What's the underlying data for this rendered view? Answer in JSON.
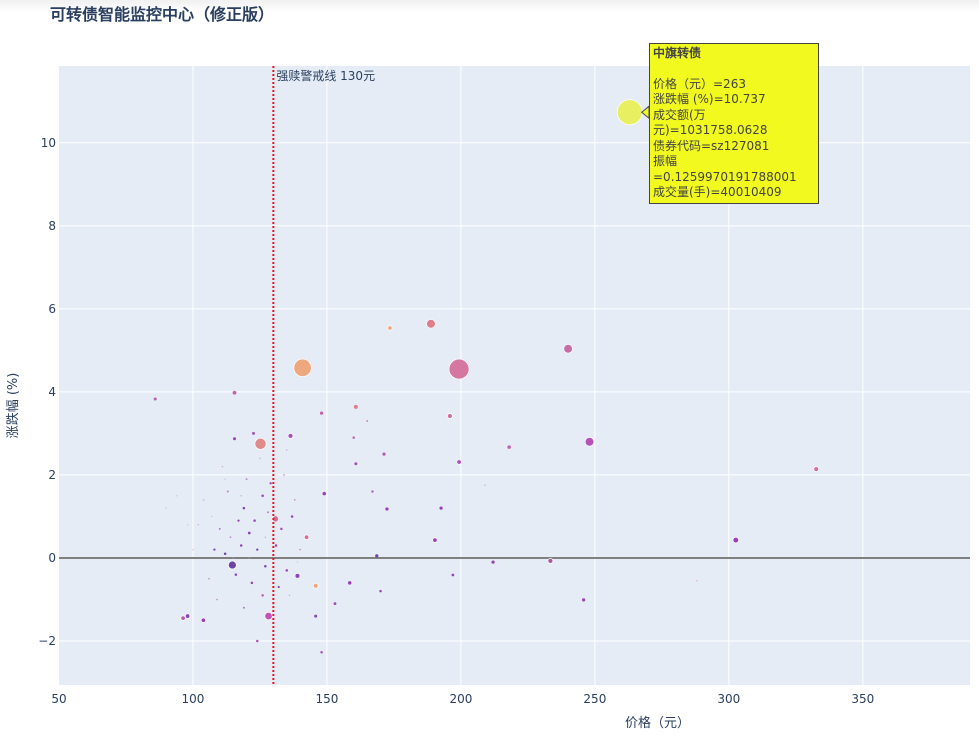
{
  "title": "可转债智能监控中心（修正版）",
  "chart_data": {
    "type": "scatter",
    "title": "可转债智能监控中心（修正版）",
    "xlabel": "价格（元）",
    "ylabel": "涨跌幅 (%)",
    "xlim": [
      50,
      390
    ],
    "ylim": [
      -3.06,
      11.85
    ],
    "xticks": [
      50,
      100,
      150,
      200,
      250,
      300,
      350
    ],
    "yticks": [
      -2,
      0,
      2,
      4,
      6,
      8,
      10
    ],
    "grid": true,
    "zero_line": 0,
    "vline": {
      "x": 130,
      "label": "强赎警戒线 130元",
      "color": "#e8141c"
    },
    "point_fields": [
      "price",
      "change_pct",
      "relative_size",
      "color"
    ],
    "points": [
      [
        263,
        10.737,
        10,
        "#e8f050"
      ],
      [
        140.9,
        4.58,
        7,
        "#f0a070"
      ],
      [
        199.3,
        4.55,
        8,
        "#d36a95"
      ],
      [
        188.8,
        5.64,
        3.5,
        "#e07080"
      ],
      [
        173.5,
        5.54,
        1.8,
        "#f0a070"
      ],
      [
        240,
        5.04,
        3.5,
        "#c060a0"
      ],
      [
        248,
        2.8,
        3.5,
        "#b040b0"
      ],
      [
        125.2,
        2.75,
        4.5,
        "#e08080"
      ],
      [
        332.6,
        2.14,
        2,
        "#d06090"
      ],
      [
        302.6,
        0.43,
        2.3,
        "#9030b0"
      ],
      [
        85.9,
        3.83,
        1.2,
        "#b050a8"
      ],
      [
        115.5,
        3.98,
        1.5,
        "#c050a0"
      ],
      [
        136.4,
        2.94,
        2,
        "#a040b0"
      ],
      [
        148,
        3.49,
        1.3,
        "#c050a0"
      ],
      [
        160.8,
        3.64,
        1.6,
        "#e07080"
      ],
      [
        195.9,
        3.42,
        2,
        "#d06090"
      ],
      [
        218,
        2.67,
        1.4,
        "#c050a0"
      ],
      [
        199.3,
        2.31,
        1.8,
        "#a040b0"
      ],
      [
        171.3,
        2.5,
        1.3,
        "#b050a8"
      ],
      [
        190.3,
        0.43,
        1.8,
        "#9030b0"
      ],
      [
        233.4,
        -0.07,
        2,
        "#a04898"
      ],
      [
        212,
        -0.1,
        1.3,
        "#9030b0"
      ],
      [
        245.8,
        -1.01,
        1.3,
        "#9030b0"
      ],
      [
        128.2,
        -1.4,
        3,
        "#c040b0"
      ],
      [
        114.7,
        -0.17,
        3.2,
        "#6030a0"
      ],
      [
        142.4,
        0.5,
        1.8,
        "#d06090"
      ],
      [
        130.8,
        0.94,
        2.5,
        "#d06090"
      ],
      [
        145.8,
        -0.67,
        2,
        "#f0a070"
      ],
      [
        158.5,
        -0.6,
        1.4,
        "#9030b0"
      ],
      [
        197,
        -0.41,
        1.1,
        "#9030b0"
      ],
      [
        168.6,
        0.05,
        1.3,
        "#6030a0"
      ],
      [
        139,
        -0.43,
        1.6,
        "#8030b0"
      ],
      [
        103.9,
        -1.5,
        1.8,
        "#9030b0"
      ],
      [
        98,
        -1.4,
        1.8,
        "#8030b0"
      ],
      [
        96.3,
        -1.45,
        1.8,
        "#b050a8"
      ],
      [
        149,
        1.55,
        1.4,
        "#9030b0"
      ],
      [
        172.4,
        1.18,
        1.3,
        "#9030b0"
      ],
      [
        192.6,
        1.2,
        1.3,
        "#9030b0"
      ],
      [
        122.6,
        3.0,
        1.2,
        "#a040b0"
      ],
      [
        160.8,
        2.27,
        1.2,
        "#a040b0"
      ],
      [
        115.5,
        2.87,
        1.2,
        "#9030b0"
      ],
      [
        148,
        -2.27,
        1,
        "#a040b0"
      ],
      [
        124,
        -2.0,
        1,
        "#a040b0"
      ],
      [
        165,
        3.3,
        0.8,
        "#c050a0"
      ],
      [
        209,
        1.75,
        0.7,
        "#c0a0c0"
      ],
      [
        288,
        -0.55,
        0.7,
        "#e0a0b0"
      ],
      [
        145.8,
        -1.4,
        1.2,
        "#8030b0"
      ],
      [
        167,
        1.6,
        0.9,
        "#a040b0"
      ],
      [
        160,
        2.9,
        1,
        "#c050a0"
      ],
      [
        170,
        -0.8,
        1,
        "#9030b0"
      ],
      [
        153,
        -1.1,
        1.1,
        "#9030b0"
      ],
      [
        112,
        0.1,
        1,
        "#6030a0"
      ],
      [
        118,
        0.3,
        1,
        "#8030b0"
      ],
      [
        121,
        0.6,
        1.1,
        "#8030b0"
      ],
      [
        123,
        0.9,
        1,
        "#9030b0"
      ],
      [
        119,
        1.2,
        1,
        "#7030a8"
      ],
      [
        126,
        1.5,
        1,
        "#9030b0"
      ],
      [
        110,
        0.7,
        0.8,
        "#9030b0"
      ],
      [
        108,
        0.2,
        0.9,
        "#8030b0"
      ],
      [
        116,
        -0.4,
        1,
        "#8030b0"
      ],
      [
        127,
        -0.2,
        1,
        "#7030a8"
      ],
      [
        131,
        0.3,
        1,
        "#9030b0"
      ],
      [
        133,
        0.7,
        1,
        "#a040b0"
      ],
      [
        129,
        1.8,
        0.9,
        "#9030b0"
      ],
      [
        113,
        1.6,
        0.8,
        "#a040b0"
      ],
      [
        122,
        -0.6,
        1,
        "#9030b0"
      ],
      [
        126,
        -0.9,
        1,
        "#b050a8"
      ],
      [
        135,
        -0.3,
        1,
        "#9030b0"
      ],
      [
        137,
        1.0,
        1,
        "#9030b0"
      ],
      [
        117,
        0.9,
        0.9,
        "#9030b0"
      ],
      [
        120,
        1.9,
        0.8,
        "#b050a8"
      ],
      [
        124,
        0.2,
        0.9,
        "#6030a0"
      ],
      [
        114,
        0.5,
        0.7,
        "#a040b0"
      ],
      [
        128,
        1.1,
        0.8,
        "#a040b0"
      ],
      [
        132,
        -0.7,
        0.9,
        "#9030b0"
      ],
      [
        106,
        -0.5,
        0.7,
        "#b060b0"
      ],
      [
        102,
        0.8,
        0.6,
        "#c090c0"
      ],
      [
        104,
        1.4,
        0.6,
        "#c090c0"
      ],
      [
        109,
        -1.0,
        0.7,
        "#b060b0"
      ],
      [
        111,
        2.2,
        0.6,
        "#c090c0"
      ],
      [
        125,
        2.4,
        0.6,
        "#c090c0"
      ],
      [
        134,
        2.0,
        0.7,
        "#b060b0"
      ],
      [
        138,
        1.4,
        0.7,
        "#b060b0"
      ],
      [
        140,
        0.2,
        0.7,
        "#b060b0"
      ],
      [
        119,
        -1.2,
        0.8,
        "#9030b0"
      ],
      [
        130,
        -1.1,
        0.7,
        "#9030b0"
      ],
      [
        136,
        -0.9,
        0.6,
        "#c090c0"
      ],
      [
        115,
        0.0,
        0.6,
        "#c090c0"
      ],
      [
        121,
        0.0,
        0.6,
        "#c090c0"
      ],
      [
        118,
        1.5,
        0.6,
        "#c090c0"
      ],
      [
        127,
        0.5,
        0.6,
        "#c090c0"
      ],
      [
        107,
        1.0,
        0.5,
        "#d0b0d0"
      ],
      [
        112,
        1.9,
        0.5,
        "#d0b0d0"
      ],
      [
        100,
        0.2,
        0.5,
        "#d0b0d0"
      ],
      [
        94,
        1.5,
        0.5,
        "#d0b0d0"
      ],
      [
        90,
        1.2,
        0.5,
        "#d0b0d0"
      ],
      [
        135,
        2.6,
        0.6,
        "#c090c0"
      ],
      [
        98,
        0.8,
        0.5,
        "#d0b0d0"
      ],
      [
        139,
        -0.1,
        0.5,
        "#d0b0d0"
      ]
    ],
    "tooltip": {
      "name": "中旗转债",
      "lines": [
        "价格（元）=263",
        "涨跌幅 (%)=10.737",
        "成交额(万元)=1031758.0628",
        "债券代码=sz127081",
        "振幅=0.1259970191788001",
        "成交量(手)=40010409"
      ]
    }
  }
}
